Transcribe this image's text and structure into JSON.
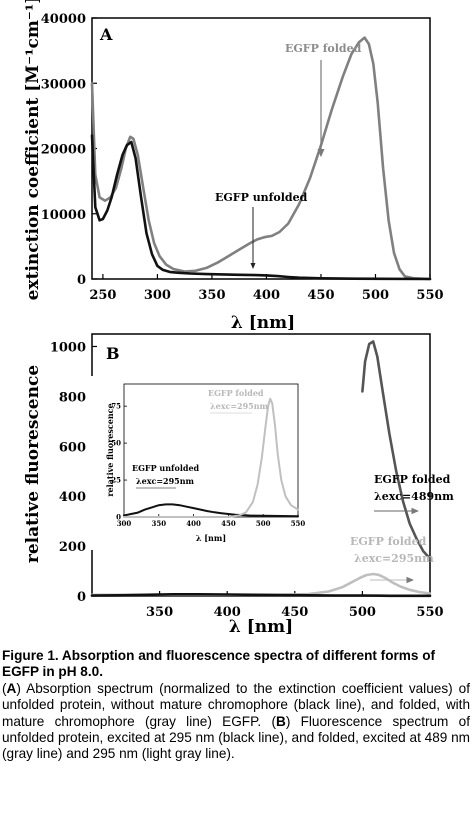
{
  "chart_data": [
    {
      "type": "line",
      "panel_label": "A",
      "xlabel": "λ [nm]",
      "ylabel": "extinction coefficient [M⁻¹cm⁻¹]",
      "xlim": [
        240,
        550
      ],
      "ylim": [
        0,
        40000
      ],
      "xticks": [
        250,
        300,
        350,
        400,
        450,
        500,
        550
      ],
      "yticks": [
        0,
        10000,
        20000,
        30000,
        40000
      ],
      "series": [
        {
          "name": "EGFP folded",
          "color": "#808080",
          "x": [
            240,
            243,
            247,
            252,
            257,
            262,
            267,
            271,
            275,
            278,
            282,
            287,
            292,
            297,
            302,
            308,
            315,
            325,
            335,
            345,
            355,
            365,
            375,
            385,
            392,
            398,
            405,
            412,
            420,
            430,
            440,
            450,
            460,
            470,
            478,
            485,
            490,
            494,
            498,
            502,
            507,
            512,
            517,
            522,
            527,
            535,
            550
          ],
          "y": [
            30000,
            16000,
            12500,
            12000,
            12500,
            14000,
            17000,
            20000,
            21800,
            21500,
            19000,
            14000,
            9000,
            5500,
            3500,
            2200,
            1500,
            1150,
            1250,
            1700,
            2500,
            3500,
            4500,
            5500,
            6100,
            6400,
            6600,
            7200,
            8500,
            11500,
            15500,
            20500,
            26000,
            31000,
            34500,
            36300,
            37000,
            36000,
            33000,
            27000,
            17000,
            9000,
            4000,
            1500,
            400,
            100,
            0
          ]
        },
        {
          "name": "EGFP unfolded",
          "color": "#111111",
          "x": [
            240,
            243,
            247,
            250,
            254,
            258,
            263,
            268,
            272,
            276,
            280,
            285,
            290,
            295,
            300,
            305,
            312,
            320,
            330,
            345,
            360,
            375,
            390,
            400,
            410,
            420,
            430,
            450,
            480,
            550
          ],
          "y": [
            22000,
            11000,
            9000,
            9200,
            10500,
            12500,
            16000,
            19000,
            20500,
            21000,
            18500,
            12500,
            7000,
            3800,
            2000,
            1400,
            1050,
            950,
            850,
            750,
            700,
            650,
            600,
            550,
            450,
            300,
            200,
            100,
            50,
            0
          ]
        }
      ],
      "annotations": [
        "EGFP folded",
        "EGFP unfolded"
      ]
    },
    {
      "type": "line",
      "panel_label": "B",
      "xlabel": "λ [nm]",
      "ylabel": "relative fluorescence",
      "xlim": [
        300,
        550
      ],
      "ylim": [
        0,
        1050
      ],
      "xticks": [
        350,
        400,
        450,
        500,
        550
      ],
      "yticks": [
        0,
        200,
        400,
        600,
        800,
        1000
      ],
      "series": [
        {
          "name": "EGFP folded λexc=489nm",
          "color": "#555555",
          "x": [
            500,
            502,
            505,
            508,
            511,
            515,
            520,
            525,
            530,
            535,
            540,
            545,
            550
          ],
          "y": [
            820,
            940,
            1010,
            1020,
            960,
            820,
            650,
            500,
            380,
            290,
            230,
            180,
            150
          ]
        },
        {
          "name": "EGFP folded λexc=295nm",
          "color": "#bfbfbf",
          "x": [
            300,
            350,
            400,
            440,
            460,
            475,
            485,
            492,
            498,
            503,
            508,
            512,
            517,
            522,
            528,
            535,
            542,
            550
          ],
          "y": [
            5,
            5,
            5,
            5,
            8,
            18,
            35,
            55,
            72,
            84,
            88,
            85,
            72,
            55,
            38,
            25,
            16,
            10
          ]
        },
        {
          "name": "EGFP unfolded λexc=295nm",
          "color": "#111111",
          "x": [
            300,
            320,
            340,
            360,
            380,
            400,
            420,
            440,
            460,
            480,
            500,
            520,
            550
          ],
          "y": [
            2,
            3,
            5,
            7,
            7,
            6,
            5,
            4,
            3,
            2,
            2,
            1,
            1
          ]
        }
      ],
      "annotations": {
        "folded_489": [
          "EGFP folded",
          "λexc=489nm"
        ],
        "folded_295": [
          "EGFP folded",
          "λexc=295nm"
        ]
      },
      "inset": {
        "xlabel": "λ [nm]",
        "ylabel": "relative fluorescence",
        "xlim": [
          300,
          550
        ],
        "ylim": [
          0,
          90
        ],
        "xticks": [
          300,
          350,
          400,
          450,
          500,
          550
        ],
        "yticks": [
          0,
          25,
          50,
          75
        ],
        "series": [
          {
            "name": "EGFP unfolded",
            "color": "#111111",
            "x": [
              300,
              310,
              320,
              330,
              340,
              350,
              360,
              370,
              380,
              390,
              400,
              410,
              420,
              430,
              440,
              450,
              460,
              480,
              500,
              550
            ],
            "y": [
              1,
              2,
              3,
              5,
              6.5,
              8,
              8.5,
              8.5,
              8,
              7,
              6,
              5,
              4,
              3.2,
              2.6,
              2,
              1.5,
              1,
              0.8,
              0.5
            ]
          },
          {
            "name": "EGFP folded",
            "color": "#c0c0c0",
            "x": [
              300,
              420,
              450,
              465,
              475,
              485,
              492,
              498,
              503,
              507,
              510,
              513,
              517,
              521,
              526,
              532,
              540,
              550
            ],
            "y": [
              0,
              0,
              0,
              1,
              3,
              10,
              22,
              40,
              60,
              75,
              80,
              77,
              62,
              42,
              25,
              14,
              8,
              5
            ]
          }
        ],
        "annotations": {
          "unfolded": [
            "EGFP unfolded",
            "λexc=295nm"
          ],
          "folded": [
            "EGFP folded",
            "λexc=295nm"
          ]
        }
      }
    }
  ],
  "caption": {
    "title": "Figure 1. Absorption and fluorescence spectra of different forms of EGFP in pH 8.0.",
    "body": [
      {
        "text": "(",
        "bold": false
      },
      {
        "text": "A",
        "bold": true
      },
      {
        "text": ") Absorption spectrum (normalized to the extinction coefficient values) of unfolded protein, without mature chromophore (black line), and folded, with mature chromophore (gray line) EGFP. (",
        "bold": false
      },
      {
        "text": "B",
        "bold": true
      },
      {
        "text": ") Fluorescence spectrum of unfolded protein, excited at 295 nm (black line), and folded, excited at 489 nm (gray line) and 295 nm (light gray line).",
        "bold": false
      }
    ]
  }
}
